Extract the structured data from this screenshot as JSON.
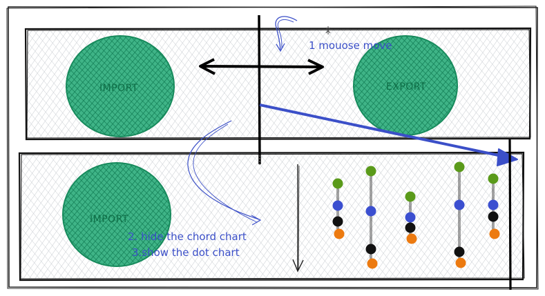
{
  "top_panel": {
    "left_circle_label": "IMPORT",
    "right_circle_label": "EXPORT"
  },
  "bottom_panel": {
    "left_circle_label": "IMPORT"
  },
  "notes": {
    "mouse_move": "1 mouose move",
    "hide_chord": "2. hide the chord chart",
    "show_dot": "3.show the dot chart"
  },
  "colors": {
    "circle_fill": "#1f9a6b",
    "circle_stroke": "#178a5c",
    "hatch": "#c8ccd0",
    "annotation": "#3b4fc8",
    "dot_green": "#5a9a1a",
    "dot_blue": "#3b4fd0",
    "dot_black": "#111111",
    "dot_orange": "#ec7a10"
  },
  "dot_columns": [
    {
      "dots": [
        "green",
        "blue",
        "black",
        "orange"
      ]
    },
    {
      "dots": [
        "green",
        "blue",
        "black",
        "orange"
      ]
    },
    {
      "dots": [
        "green",
        "blue",
        "black",
        "orange"
      ]
    },
    {
      "dots": [
        "green",
        "blue",
        "black",
        "orange"
      ]
    },
    {
      "dots": [
        "green",
        "blue",
        "black",
        "orange"
      ]
    }
  ]
}
